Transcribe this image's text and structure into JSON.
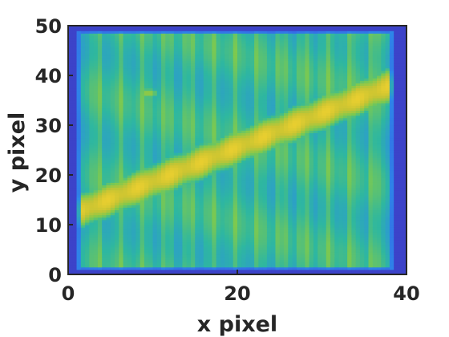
{
  "chart_data": {
    "type": "heatmap",
    "xlabel": "x pixel",
    "ylabel": "y pixel",
    "xlim": [
      0,
      40
    ],
    "ylim": [
      0,
      50
    ],
    "x_ticks": [
      0,
      20,
      40
    ],
    "y_ticks": [
      0,
      10,
      20,
      30,
      40,
      50
    ],
    "grid": false,
    "colormap": "parula",
    "colors": {
      "low": "#3e26a8",
      "mid_low": "#2b8ce8",
      "mid": "#2eb7a0",
      "mid_high": "#7dc94f",
      "high": "#fbd42e"
    },
    "features": {
      "band": {
        "start": [
          1,
          12.5
        ],
        "end": [
          38,
          38
        ],
        "halfwidth": 5,
        "peak_value": 0.92
      },
      "spot": {
        "center": [
          9.5,
          36.5
        ],
        "value": 0.68
      },
      "background_value": 0.5,
      "edge_value": 0.08,
      "data_extent": {
        "x": [
          1,
          38.5
        ],
        "y": [
          1,
          49
        ]
      }
    }
  }
}
